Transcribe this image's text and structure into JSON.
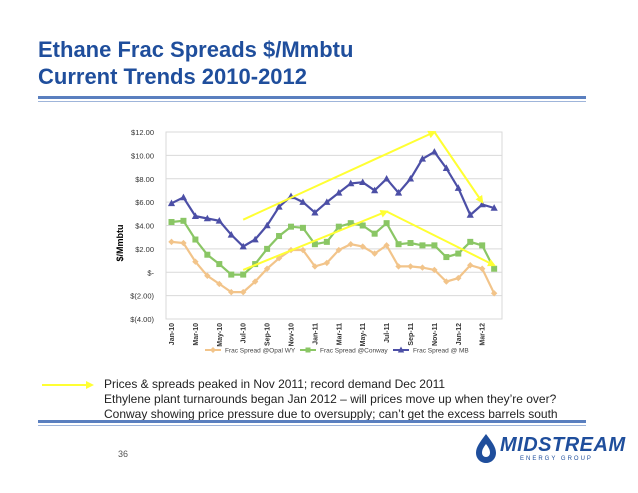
{
  "slide": {
    "title_line1": "Ethane Frac Spreads $/Mmbtu",
    "title_line2": "Current Trends 2010-2012",
    "notes": [
      "Prices & spreads peaked in Nov 2011; record demand Dec 2011",
      "Ethylene plant turnarounds began Jan 2012 – will prices move up when they’re over?",
      "Conway showing price pressure due to oversupply; can’t get the excess barrels south"
    ],
    "page_number": "36",
    "logo_text": "MIDSTREAM",
    "logo_subtext": "ENERGY GROUP"
  },
  "colors": {
    "title": "#1f4e9c",
    "series_opal": "#f2c48a",
    "series_conway": "#8ac665",
    "series_mb": "#4c4fa6",
    "arrow": "#ffff33",
    "rule": "#5a7fbf"
  },
  "chart_data": {
    "type": "line",
    "ylabel": "$/Mmbtu",
    "ylim": [
      -4,
      12
    ],
    "yticks": [
      -4,
      -2,
      0,
      2,
      4,
      6,
      8,
      10,
      12
    ],
    "ytick_labels": [
      "$(4.00)",
      "$(2.00)",
      "$-",
      "$2.00",
      "$4.00",
      "$6.00",
      "$8.00",
      "$10.00",
      "$12.00"
    ],
    "grid": true,
    "legend_position": "bottom",
    "categories": [
      "Jan-10",
      "Feb-10",
      "Mar-10",
      "Apr-10",
      "May-10",
      "Jun-10",
      "Jul-10",
      "Aug-10",
      "Sep-10",
      "Oct-10",
      "Nov-10",
      "Dec-10",
      "Jan-11",
      "Feb-11",
      "Mar-11",
      "Apr-11",
      "May-11",
      "Jun-11",
      "Jul-11",
      "Aug-11",
      "Sep-11",
      "Oct-11",
      "Nov-11",
      "Dec-11",
      "Jan-12",
      "Feb-12",
      "Mar-12",
      "Apr-12"
    ],
    "tick_labels": [
      "Jan-10",
      "Mar-10",
      "May-10",
      "Jul-10",
      "Sep-10",
      "Nov-10",
      "Jan-11",
      "Mar-11",
      "May-11",
      "Jul-11",
      "Sep-11",
      "Nov-11",
      "Jan-12",
      "Mar-12"
    ],
    "series": [
      {
        "name": "Frac Spread @Opal WY",
        "marker": "diamond",
        "values": [
          2.6,
          2.5,
          0.9,
          -0.3,
          -1.0,
          -1.7,
          -1.7,
          -0.8,
          0.3,
          1.2,
          1.9,
          1.9,
          0.5,
          0.8,
          1.9,
          2.4,
          2.2,
          1.6,
          2.3,
          0.5,
          0.5,
          0.4,
          0.2,
          -0.8,
          -0.5,
          0.6,
          0.3,
          -1.8
        ]
      },
      {
        "name": "Frac Spread @Conway",
        "marker": "square",
        "values": [
          4.3,
          4.4,
          2.8,
          1.5,
          0.7,
          -0.2,
          -0.2,
          0.7,
          2.0,
          3.1,
          3.9,
          3.8,
          2.4,
          2.6,
          3.9,
          4.2,
          4.0,
          3.3,
          4.2,
          2.4,
          2.5,
          2.3,
          2.3,
          1.3,
          1.6,
          2.6,
          2.3,
          0.3
        ]
      },
      {
        "name": "Frac Spread @ MB",
        "marker": "triangle",
        "values": [
          5.9,
          6.4,
          4.8,
          4.6,
          4.4,
          3.2,
          2.2,
          2.8,
          4.0,
          5.6,
          6.5,
          6.0,
          5.1,
          6.0,
          6.8,
          7.6,
          7.7,
          7.0,
          8.0,
          6.8,
          8.0,
          9.7,
          10.3,
          8.9,
          7.2,
          4.9,
          5.8,
          5.5
        ]
      }
    ],
    "annotations": {
      "arrows": [
        {
          "from": [
            "Jul-10",
            4.5
          ],
          "to": [
            "Nov-11",
            12.0
          ]
        },
        {
          "from": [
            "Nov-11",
            12.0
          ],
          "to": [
            "Mar-12",
            6.0
          ]
        },
        {
          "from": [
            "Jul-10",
            0.2
          ],
          "to": [
            "Jul-11",
            5.2
          ]
        },
        {
          "from": [
            "Jul-11",
            5.2
          ],
          "to": [
            "Apr-12",
            0.6
          ]
        }
      ]
    }
  }
}
